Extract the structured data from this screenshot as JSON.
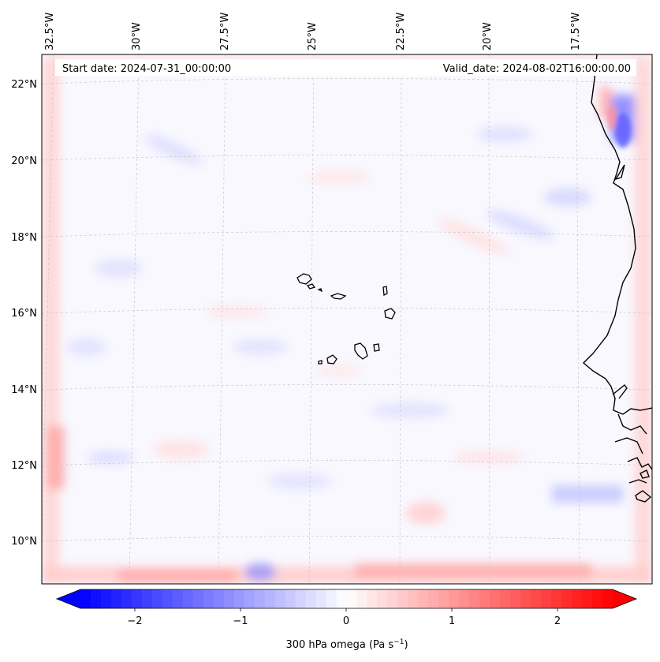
{
  "map": {
    "header": {
      "start_label": "Start date: 2024-07-31_00:00:00",
      "valid_label": "Valid_date: 2024-08-02T16:00:00.00"
    },
    "lon_ticks": [
      "32.5°W",
      "30°W",
      "27.5°W",
      "25°W",
      "22.5°W",
      "20°W",
      "17.5°W"
    ],
    "lat_ticks": [
      "22°N",
      "20°N",
      "18°N",
      "16°N",
      "14°N",
      "12°N",
      "10°N"
    ],
    "colorbar": {
      "ticks": [
        "−2",
        "−1",
        "0",
        "1",
        "2"
      ],
      "label_main": "300 hPa omega (Pa s",
      "label_exp": "−1",
      "label_close": ")",
      "vmin": -2.6,
      "vmax": 2.6,
      "cmap": "bwr"
    },
    "colors": {
      "negative": "#0000ff",
      "positive": "#ff0000",
      "neutral": "#ffffff",
      "coastline": "#000000",
      "grid": "#bbbbbb"
    }
  }
}
